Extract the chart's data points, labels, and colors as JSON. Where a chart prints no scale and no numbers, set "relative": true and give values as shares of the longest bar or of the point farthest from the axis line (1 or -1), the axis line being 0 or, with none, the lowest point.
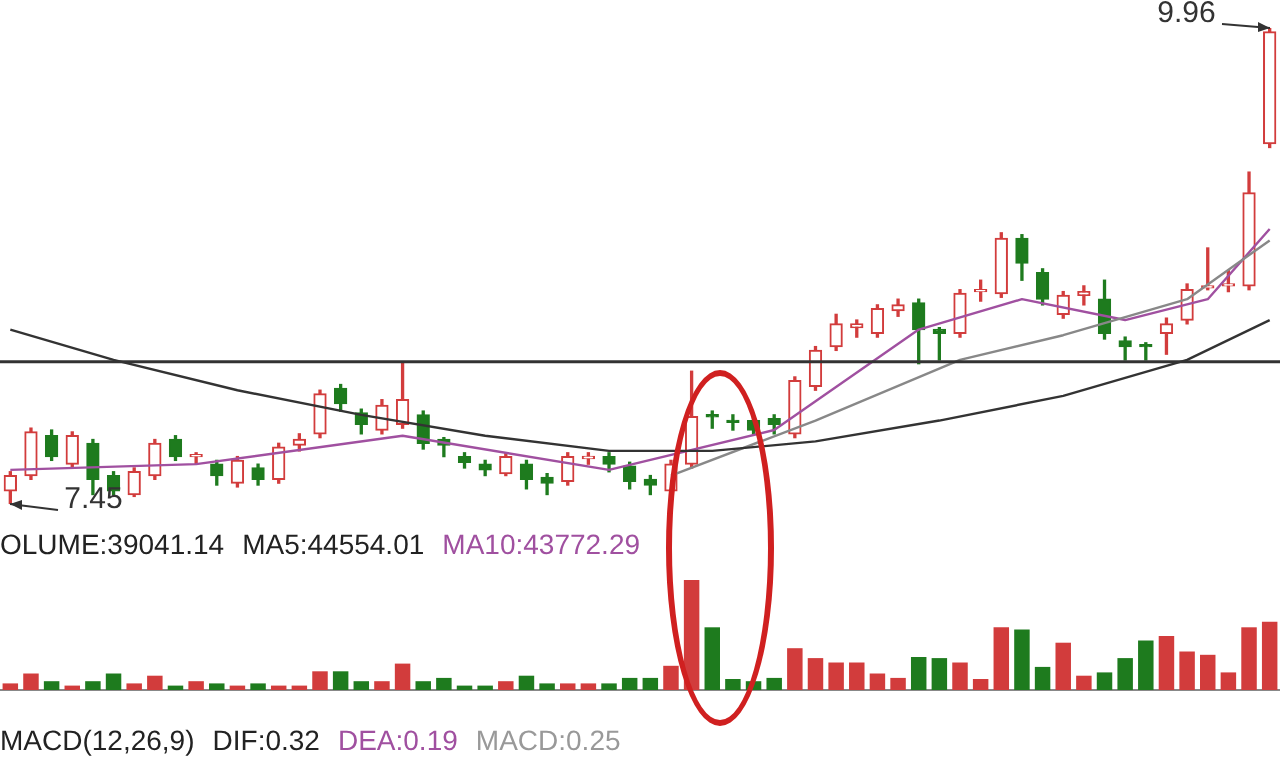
{
  "chart_data": [
    {
      "type": "candlestick",
      "categories": [
        null,
        null,
        null,
        null,
        null,
        null,
        null,
        null,
        null,
        null,
        null,
        null,
        null,
        null,
        null,
        null,
        null,
        null,
        null,
        null,
        null,
        null,
        null,
        null,
        null,
        null,
        null,
        null,
        null,
        null,
        null,
        null,
        null,
        null,
        null,
        null,
        null,
        null,
        null,
        null,
        null,
        null,
        null,
        null,
        null,
        null,
        null,
        null,
        null,
        null,
        null,
        null,
        null,
        null,
        null,
        null,
        null,
        null,
        null,
        null,
        null,
        null
      ],
      "ohlc": [
        [
          7.52,
          7.62,
          7.45,
          7.6
        ],
        [
          7.6,
          7.85,
          7.58,
          7.83
        ],
        [
          7.81,
          7.84,
          7.68,
          7.7
        ],
        [
          7.66,
          7.83,
          7.64,
          7.81
        ],
        [
          7.77,
          7.79,
          7.5,
          7.58
        ],
        [
          7.6,
          7.62,
          7.5,
          7.52
        ],
        [
          7.5,
          7.64,
          7.49,
          7.62
        ],
        [
          7.6,
          7.79,
          7.58,
          7.77
        ],
        [
          7.79,
          7.81,
          7.68,
          7.7
        ],
        [
          7.7,
          7.72,
          7.66,
          7.71
        ],
        [
          7.66,
          7.68,
          7.55,
          7.6
        ],
        [
          7.56,
          7.7,
          7.54,
          7.68
        ],
        [
          7.64,
          7.66,
          7.55,
          7.58
        ],
        [
          7.58,
          7.77,
          7.56,
          7.75
        ],
        [
          7.76,
          7.82,
          7.73,
          7.79
        ],
        [
          7.82,
          8.05,
          7.8,
          8.03
        ],
        [
          8.06,
          8.08,
          7.94,
          7.98
        ],
        [
          7.93,
          7.95,
          7.82,
          7.87
        ],
        [
          7.84,
          8.0,
          7.82,
          7.97
        ],
        [
          7.87,
          8.19,
          7.85,
          8.0
        ],
        [
          7.92,
          7.94,
          7.74,
          7.77
        ],
        [
          7.79,
          7.8,
          7.7,
          7.76
        ],
        [
          7.7,
          7.72,
          7.64,
          7.67
        ],
        [
          7.66,
          7.68,
          7.6,
          7.63
        ],
        [
          7.61,
          7.72,
          7.6,
          7.7
        ],
        [
          7.66,
          7.68,
          7.53,
          7.58
        ],
        [
          7.59,
          7.61,
          7.5,
          7.56
        ],
        [
          7.57,
          7.72,
          7.55,
          7.7
        ],
        [
          7.69,
          7.72,
          7.66,
          7.7
        ],
        [
          7.7,
          7.72,
          7.62,
          7.66
        ],
        [
          7.65,
          7.67,
          7.53,
          7.57
        ],
        [
          7.58,
          7.6,
          7.5,
          7.55
        ],
        [
          7.52,
          7.68,
          7.5,
          7.66
        ],
        [
          7.66,
          8.15,
          7.64,
          7.91
        ],
        [
          7.92,
          7.94,
          7.85,
          7.91
        ],
        [
          7.89,
          7.92,
          7.84,
          7.88
        ],
        [
          7.89,
          7.91,
          7.82,
          7.84
        ],
        [
          7.9,
          7.92,
          7.82,
          7.87
        ],
        [
          7.82,
          8.12,
          7.8,
          8.1
        ],
        [
          8.07,
          8.28,
          8.05,
          8.26
        ],
        [
          8.28,
          8.45,
          8.26,
          8.4
        ],
        [
          8.38,
          8.42,
          8.33,
          8.4
        ],
        [
          8.35,
          8.5,
          8.33,
          8.48
        ],
        [
          8.47,
          8.53,
          8.44,
          8.5
        ],
        [
          8.51,
          8.53,
          8.19,
          8.37
        ],
        [
          8.37,
          8.38,
          8.21,
          8.35
        ],
        [
          8.35,
          8.58,
          8.33,
          8.56
        ],
        [
          8.57,
          8.63,
          8.52,
          8.58
        ],
        [
          8.56,
          8.88,
          8.54,
          8.85
        ],
        [
          8.85,
          8.87,
          8.63,
          8.72
        ],
        [
          8.67,
          8.69,
          8.5,
          8.53
        ],
        [
          8.45,
          8.57,
          8.43,
          8.55
        ],
        [
          8.55,
          8.6,
          8.5,
          8.57
        ],
        [
          8.53,
          8.63,
          8.32,
          8.35
        ],
        [
          8.31,
          8.33,
          8.21,
          8.28
        ],
        [
          8.29,
          8.3,
          8.21,
          8.28
        ],
        [
          8.35,
          8.43,
          8.24,
          8.4
        ],
        [
          8.42,
          8.61,
          8.4,
          8.58
        ],
        [
          8.59,
          8.8,
          8.58,
          8.6
        ],
        [
          8.6,
          8.68,
          8.57,
          8.61
        ],
        [
          8.6,
          9.2,
          8.58,
          9.09
        ],
        [
          9.35,
          9.96,
          9.33,
          9.94
        ]
      ],
      "colors": [
        "#d23c3c",
        "#d23c3c",
        "#1e7b1e",
        "#d23c3c",
        "#1e7b1e",
        "#1e7b1e",
        "#d23c3c",
        "#d23c3c",
        "#1e7b1e",
        "#d23c3c",
        "#1e7b1e",
        "#d23c3c",
        "#1e7b1e",
        "#d23c3c",
        "#d23c3c",
        "#d23c3c",
        "#1e7b1e",
        "#1e7b1e",
        "#d23c3c",
        "#d23c3c",
        "#1e7b1e",
        "#1e7b1e",
        "#1e7b1e",
        "#1e7b1e",
        "#d23c3c",
        "#1e7b1e",
        "#1e7b1e",
        "#d23c3c",
        "#d23c3c",
        "#1e7b1e",
        "#1e7b1e",
        "#1e7b1e",
        "#d23c3c",
        "#d23c3c",
        "#1e7b1e",
        "#1e7b1e",
        "#1e7b1e",
        "#1e7b1e",
        "#d23c3c",
        "#d23c3c",
        "#d23c3c",
        "#d23c3c",
        "#d23c3c",
        "#d23c3c",
        "#1e7b1e",
        "#1e7b1e",
        "#d23c3c",
        "#d23c3c",
        "#d23c3c",
        "#1e7b1e",
        "#1e7b1e",
        "#d23c3c",
        "#d23c3c",
        "#1e7b1e",
        "#1e7b1e",
        "#1e7b1e",
        "#d23c3c",
        "#d23c3c",
        "#d23c3c",
        "#d23c3c",
        "#d23c3c",
        "#d23c3c"
      ],
      "series": [
        {
          "type": "line",
          "color": "#333333",
          "values": [
            8.37,
            null,
            null,
            null,
            null,
            8.21,
            null,
            null,
            null,
            null,
            null,
            8.05,
            null,
            null,
            null,
            null,
            null,
            7.92,
            null,
            null,
            null,
            null,
            null,
            7.81,
            null,
            null,
            null,
            null,
            null,
            7.73,
            null,
            null,
            null,
            null,
            7.73,
            null,
            null,
            null,
            null,
            7.78,
            null,
            null,
            null,
            null,
            null,
            7.89,
            null,
            null,
            null,
            null,
            null,
            8.02,
            null,
            null,
            null,
            null,
            null,
            8.21,
            null,
            null,
            null,
            8.42
          ]
        },
        {
          "type": "line",
          "color": "#888888",
          "values": [
            null,
            null,
            null,
            null,
            null,
            null,
            null,
            null,
            null,
            null,
            null,
            null,
            null,
            null,
            null,
            null,
            null,
            null,
            null,
            null,
            null,
            null,
            null,
            null,
            null,
            null,
            null,
            null,
            null,
            null,
            null,
            null,
            7.6,
            null,
            null,
            null,
            null,
            null,
            null,
            7.89,
            null,
            null,
            null,
            null,
            null,
            null,
            8.21,
            null,
            null,
            null,
            null,
            8.34,
            null,
            null,
            null,
            null,
            null,
            8.53,
            null,
            null,
            null,
            8.84
          ]
        },
        {
          "type": "line",
          "color": "#a050a0",
          "values": [
            7.63,
            null,
            null,
            null,
            null,
            null,
            null,
            null,
            null,
            7.66,
            null,
            null,
            null,
            null,
            null,
            null,
            null,
            null,
            null,
            7.81,
            null,
            null,
            null,
            null,
            null,
            null,
            null,
            null,
            null,
            7.63,
            null,
            null,
            null,
            null,
            null,
            null,
            null,
            7.84,
            null,
            null,
            null,
            null,
            null,
            null,
            8.37,
            null,
            null,
            null,
            null,
            8.53,
            null,
            null,
            null,
            null,
            8.42,
            null,
            null,
            null,
            8.53,
            null,
            null,
            8.9
          ]
        }
      ],
      "ref_lines": [
        {
          "axis": "y",
          "value": 8.2,
          "color": "#333333"
        }
      ],
      "annotations": [
        "9.96",
        "7.45",
        "OLUME:39041.14",
        "MA5:44554.01",
        "MA10:43772.29",
        "MACD(12,26,9)",
        "DIF:0.32",
        "DEA:0.19",
        "MACD:0.25"
      ]
    },
    {
      "type": "bar",
      "relative": true,
      "categories": [
        null,
        null,
        null,
        null,
        null,
        null,
        null,
        null,
        null,
        null,
        null,
        null,
        null,
        null,
        null,
        null,
        null,
        null,
        null,
        null,
        null,
        null,
        null,
        null,
        null,
        null,
        null,
        null,
        null,
        null,
        null,
        null,
        null,
        null,
        null,
        null,
        null,
        null,
        null,
        null,
        null,
        null,
        null,
        null,
        null,
        null,
        null,
        null,
        null,
        null,
        null,
        null,
        null,
        null,
        null,
        null,
        null,
        null,
        null,
        null,
        null,
        null
      ],
      "values": [
        0.06,
        0.15,
        0.08,
        0.04,
        0.08,
        0.15,
        0.06,
        0.13,
        0.04,
        0.08,
        0.06,
        0.04,
        0.06,
        0.04,
        0.04,
        0.17,
        0.17,
        0.08,
        0.08,
        0.24,
        0.08,
        0.11,
        0.04,
        0.04,
        0.08,
        0.13,
        0.06,
        0.06,
        0.06,
        0.06,
        0.11,
        0.11,
        0.22,
        1,
        0.57,
        0.1,
        0.08,
        0.11,
        0.38,
        0.29,
        0.25,
        0.25,
        0.15,
        0.11,
        0.3,
        0.29,
        0.25,
        0.1,
        0.57,
        0.55,
        0.21,
        0.43,
        0.13,
        0.16,
        0.29,
        0.45,
        0.49,
        0.35,
        0.32,
        0.16,
        0.57,
        0.62
      ],
      "colors": [
        "#d23c3c",
        "#d23c3c",
        "#1e7b1e",
        "#d23c3c",
        "#1e7b1e",
        "#1e7b1e",
        "#d23c3c",
        "#d23c3c",
        "#1e7b1e",
        "#d23c3c",
        "#1e7b1e",
        "#d23c3c",
        "#1e7b1e",
        "#d23c3c",
        "#d23c3c",
        "#d23c3c",
        "#1e7b1e",
        "#1e7b1e",
        "#d23c3c",
        "#d23c3c",
        "#1e7b1e",
        "#1e7b1e",
        "#1e7b1e",
        "#1e7b1e",
        "#d23c3c",
        "#1e7b1e",
        "#1e7b1e",
        "#d23c3c",
        "#d23c3c",
        "#1e7b1e",
        "#1e7b1e",
        "#1e7b1e",
        "#d23c3c",
        "#d23c3c",
        "#1e7b1e",
        "#1e7b1e",
        "#1e7b1e",
        "#1e7b1e",
        "#d23c3c",
        "#d23c3c",
        "#d23c3c",
        "#d23c3c",
        "#d23c3c",
        "#d23c3c",
        "#1e7b1e",
        "#1e7b1e",
        "#d23c3c",
        "#d23c3c",
        "#d23c3c",
        "#1e7b1e",
        "#1e7b1e",
        "#d23c3c",
        "#d23c3c",
        "#1e7b1e",
        "#1e7b1e",
        "#1e7b1e",
        "#d23c3c",
        "#d23c3c",
        "#d23c3c",
        "#d23c3c",
        "#d23c3c",
        "#d23c3c"
      ]
    }
  ]
}
